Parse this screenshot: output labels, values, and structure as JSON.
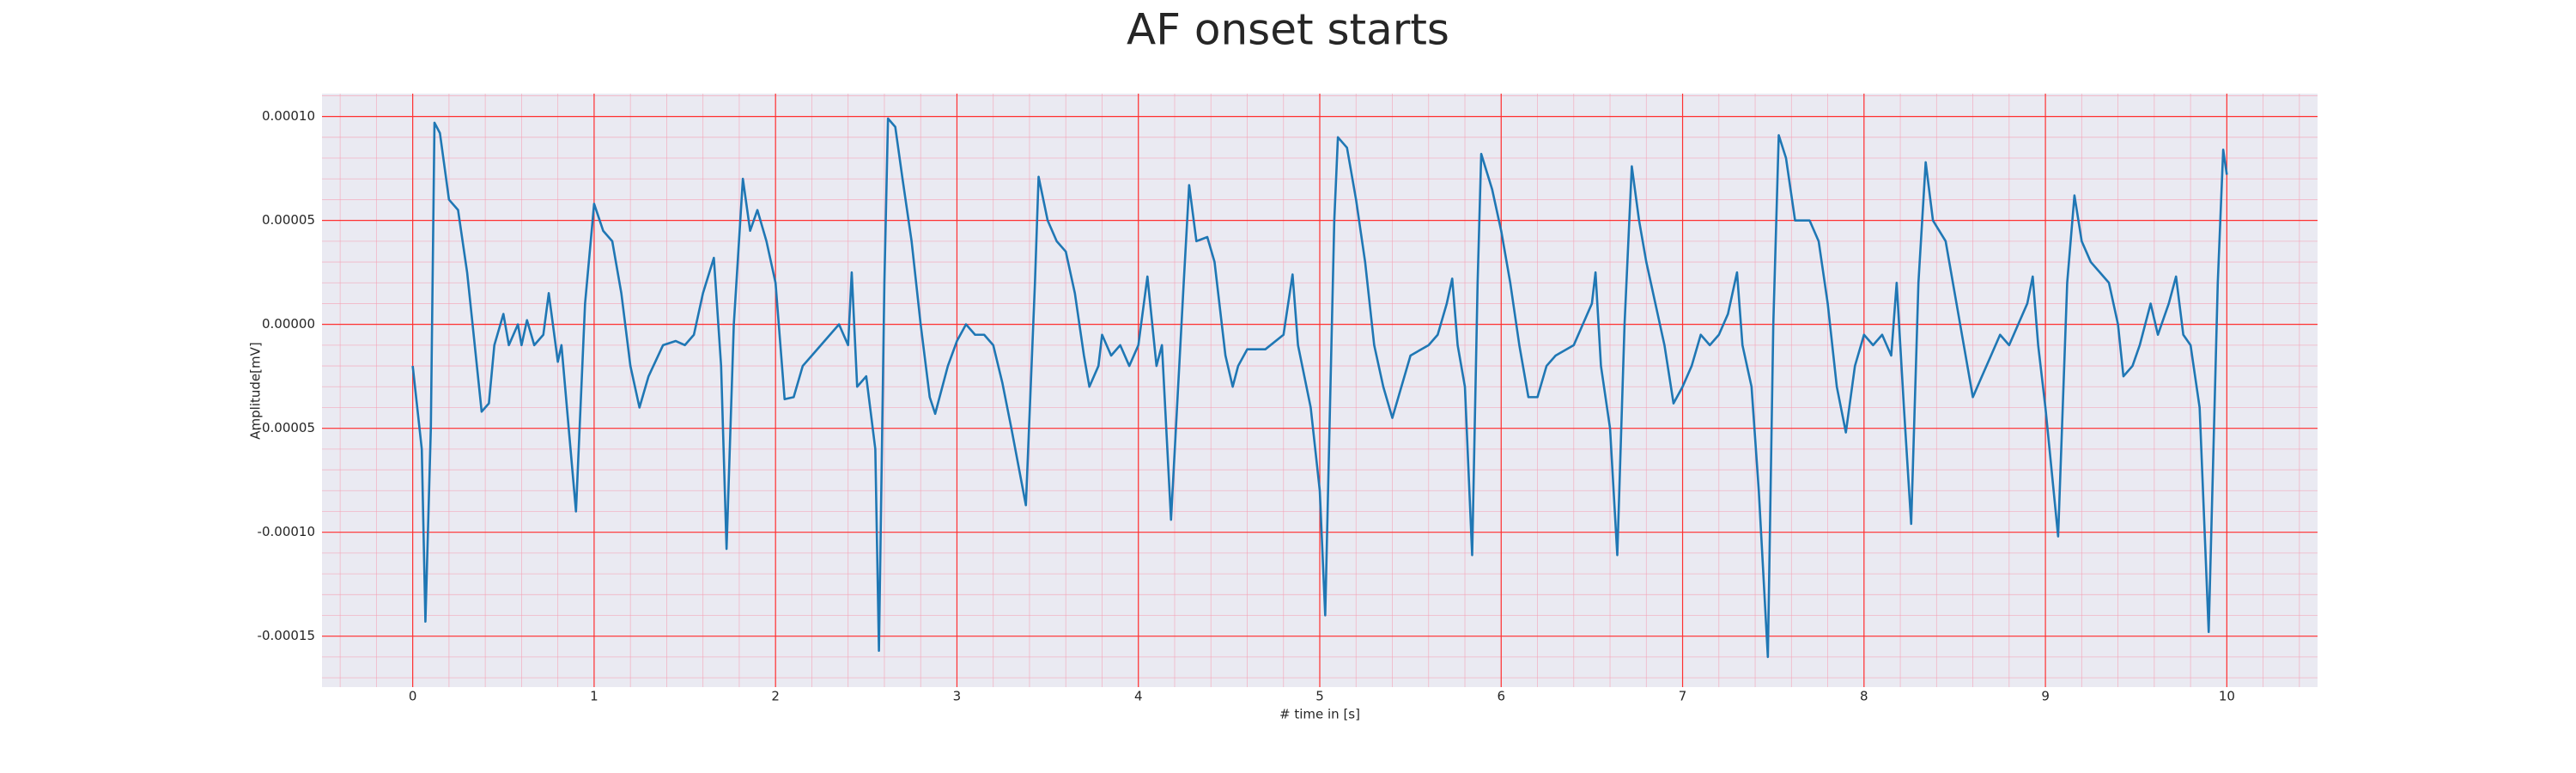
{
  "chart_data": {
    "type": "line",
    "title": "AF onset starts",
    "xlabel": "# time in [s]",
    "ylabel": "Amplitude[mV]",
    "color": "#1f77b4",
    "background": "#eaeaf2",
    "grid": true,
    "major_grid_color": "#ff3030",
    "minor_grid_color": "#f5a0b4",
    "minor_grid": {
      "x_step": 0.2,
      "y_step": 1e-05
    },
    "xlim": [
      -0.5,
      10.5
    ],
    "ylim": [
      -0.0001745,
      0.000111
    ],
    "xticks": [
      0,
      1,
      2,
      3,
      4,
      5,
      6,
      7,
      8,
      9,
      10
    ],
    "yticks": [
      {
        "value": -0.00015,
        "label": "-0.00015"
      },
      {
        "value": -0.0001,
        "label": "-0.00010"
      },
      {
        "value": -5e-05,
        "label": "-0.00005"
      },
      {
        "value": 0,
        "label": "0.00000"
      },
      {
        "value": 5e-05,
        "label": "0.00005"
      },
      {
        "value": 0.0001,
        "label": "0.00010"
      }
    ],
    "x": [
      0,
      0.05,
      0.07,
      0.1,
      0.12,
      0.15,
      0.2,
      0.25,
      0.3,
      0.33,
      0.38,
      0.42,
      0.45,
      0.5,
      0.53,
      0.58,
      0.6,
      0.63,
      0.67,
      0.72,
      0.75,
      0.8,
      0.82,
      0.9,
      0.95,
      1.0,
      1.05,
      1.1,
      1.15,
      1.2,
      1.25,
      1.3,
      1.38,
      1.45,
      1.5,
      1.55,
      1.6,
      1.66,
      1.7,
      1.73,
      1.77,
      1.82,
      1.86,
      1.9,
      1.95,
      2.0,
      2.05,
      2.1,
      2.15,
      2.2,
      2.3,
      2.35,
      2.4,
      2.42,
      2.45,
      2.5,
      2.55,
      2.57,
      2.6,
      2.62,
      2.66,
      2.7,
      2.75,
      2.8,
      2.85,
      2.88,
      2.95,
      3.0,
      3.05,
      3.1,
      3.15,
      3.2,
      3.25,
      3.3,
      3.38,
      3.43,
      3.45,
      3.5,
      3.55,
      3.6,
      3.65,
      3.7,
      3.73,
      3.78,
      3.8,
      3.85,
      3.9,
      3.95,
      4.0,
      4.05,
      4.1,
      4.13,
      4.18,
      4.25,
      4.28,
      4.32,
      4.38,
      4.42,
      4.48,
      4.52,
      4.55,
      4.6,
      4.7,
      4.8,
      4.85,
      4.88,
      4.95,
      5.0,
      5.03,
      5.08,
      5.1,
      5.15,
      5.2,
      5.25,
      5.3,
      5.35,
      5.4,
      5.45,
      5.5,
      5.6,
      5.65,
      5.7,
      5.73,
      5.76,
      5.8,
      5.84,
      5.87,
      5.89,
      5.95,
      6.0,
      6.05,
      6.1,
      6.15,
      6.2,
      6.25,
      6.3,
      6.4,
      6.45,
      6.5,
      6.52,
      6.55,
      6.6,
      6.64,
      6.68,
      6.72,
      6.76,
      6.8,
      6.85,
      6.9,
      6.95,
      7.0,
      7.05,
      7.1,
      7.15,
      7.2,
      7.25,
      7.3,
      7.33,
      7.38,
      7.42,
      7.47,
      7.5,
      7.53,
      7.57,
      7.62,
      7.7,
      7.75,
      7.8,
      7.85,
      7.9,
      7.95,
      8.0,
      8.05,
      8.1,
      8.15,
      8.18,
      8.2,
      8.22,
      8.26,
      8.3,
      8.34,
      8.38,
      8.45,
      8.5,
      8.55,
      8.6,
      8.65,
      8.7,
      8.75,
      8.8,
      8.85,
      8.9,
      8.93,
      8.96,
      9.0,
      9.07,
      9.12,
      9.16,
      9.2,
      9.25,
      9.3,
      9.35,
      9.4,
      9.43,
      9.48,
      9.52,
      9.58,
      9.62,
      9.68,
      9.72,
      9.76,
      9.8,
      9.85,
      9.9,
      9.95,
      9.98,
      10.0
    ],
    "values": [
      -2e-05,
      -6e-05,
      -0.000143,
      -5e-05,
      9.7e-05,
      9.2e-05,
      6e-05,
      5.5e-05,
      2.5e-05,
      0,
      -4.2e-05,
      -3.8e-05,
      -1e-05,
      5e-06,
      -1e-05,
      0,
      -1e-05,
      2e-06,
      -1e-05,
      -5e-06,
      1.5e-05,
      -1.8e-05,
      -1e-05,
      -9e-05,
      1e-05,
      5.8e-05,
      4.5e-05,
      4e-05,
      1.5e-05,
      -2e-05,
      -4e-05,
      -2.5e-05,
      -1e-05,
      -8e-06,
      -1e-05,
      -5e-06,
      1.5e-05,
      3.2e-05,
      -2e-05,
      -0.000108,
      0,
      7e-05,
      4.5e-05,
      5.5e-05,
      4e-05,
      2e-05,
      -3.6e-05,
      -3.5e-05,
      -2e-05,
      -1.5e-05,
      -5e-06,
      0,
      -1e-05,
      2.5e-05,
      -3e-05,
      -2.5e-05,
      -6e-05,
      -0.000157,
      2e-05,
      9.9e-05,
      9.5e-05,
      7e-05,
      4e-05,
      0,
      -3.5e-05,
      -4.3e-05,
      -2e-05,
      -8e-06,
      0,
      -5e-06,
      -5e-06,
      -1e-05,
      -2.8e-05,
      -5e-05,
      -8.7e-05,
      2e-05,
      7.1e-05,
      5e-05,
      4e-05,
      3.5e-05,
      1.5e-05,
      -1.5e-05,
      -3e-05,
      -2e-05,
      -5e-06,
      -1.5e-05,
      -1e-05,
      -2e-05,
      -1e-05,
      2.3e-05,
      -2e-05,
      -1e-05,
      -9.4e-05,
      2e-05,
      6.7e-05,
      4e-05,
      4.2e-05,
      3e-05,
      -1.5e-05,
      -3e-05,
      -2e-05,
      -1.2e-05,
      -1.2e-05,
      -5e-06,
      2.4e-05,
      -1e-05,
      -4e-05,
      -8e-05,
      -0.00014,
      5e-05,
      9e-05,
      8.5e-05,
      6e-05,
      3e-05,
      -1e-05,
      -3e-05,
      -4.5e-05,
      -3e-05,
      -1.5e-05,
      -1e-05,
      -5e-06,
      1e-05,
      2.2e-05,
      -1e-05,
      -3e-05,
      -0.000111,
      2e-05,
      8.2e-05,
      6.5e-05,
      4.5e-05,
      2e-05,
      -1e-05,
      -3.5e-05,
      -3.5e-05,
      -2e-05,
      -1.5e-05,
      -1e-05,
      0,
      1e-05,
      2.5e-05,
      -2e-05,
      -5e-05,
      -0.000111,
      0,
      7.6e-05,
      5e-05,
      3e-05,
      1e-05,
      -1e-05,
      -3.8e-05,
      -3e-05,
      -2e-05,
      -5e-06,
      -1e-05,
      -5e-06,
      5e-06,
      2.5e-05,
      -1e-05,
      -3e-05,
      -8e-05,
      -0.00016,
      0,
      9.1e-05,
      8e-05,
      5e-05,
      5e-05,
      4e-05,
      1e-05,
      -3e-05,
      -5.2e-05,
      -2e-05,
      -5e-06,
      -1e-05,
      -5e-06,
      -1.5e-05,
      2e-05,
      -1e-05,
      -4e-05,
      -9.6e-05,
      2e-05,
      7.8e-05,
      5e-05,
      4e-05,
      1.5e-05,
      -1e-05,
      -3.5e-05,
      -2.5e-05,
      -1.5e-05,
      -5e-06,
      -1e-05,
      0,
      1e-05,
      2.3e-05,
      -1e-05,
      -4e-05,
      -0.000102,
      2e-05,
      6.2e-05,
      4e-05,
      3e-05,
      2.5e-05,
      2e-05,
      0,
      -2.5e-05,
      -2e-05,
      -1e-05,
      1e-05,
      -5e-06,
      1e-05,
      2.3e-05,
      -5e-06,
      -1e-05,
      -4e-05,
      -0.000148,
      2e-05,
      8.4e-05,
      7.2e-05
    ]
  }
}
